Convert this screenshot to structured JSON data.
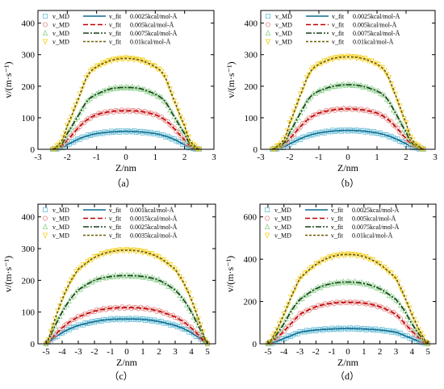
{
  "figure": {
    "legend_markers": [
      "v_MD",
      "v_MD",
      "v_MD",
      "v_MD"
    ],
    "legend_fits": [
      "v_fit",
      "v_fit",
      "v_fit",
      "v_fit"
    ]
  },
  "chart_data": [
    {
      "type": "line",
      "panel_label": "（a）",
      "xlabel": "Z/nm",
      "ylabel": "v/(m·s⁻¹)",
      "xlim": [
        -3,
        3
      ],
      "ylim": [
        0,
        440
      ],
      "xticks": [
        -3,
        -2,
        -1,
        0,
        1,
        2,
        3
      ],
      "yticks": [
        0,
        100,
        200,
        300,
        400
      ],
      "legend_position": "top",
      "series": [
        {
          "name": "0.0025kcal/mol-Å",
          "color": "#0b6a8f",
          "md_color": "#6ec1d9",
          "marker": "square",
          "dash": "none",
          "x": [
            -2.5,
            -2.2,
            -2.0,
            -1.6,
            -1.3,
            -1.0,
            -0.5,
            0,
            0.5,
            1.0,
            1.3,
            1.6,
            2.0,
            2.2,
            2.5
          ],
          "y": [
            0,
            5,
            15,
            33,
            43,
            50,
            55,
            57,
            55,
            50,
            43,
            33,
            15,
            5,
            0
          ]
        },
        {
          "name": "0.005kcal/mol-Å",
          "color": "#c00000",
          "md_color": "#e58a8a",
          "marker": "circle",
          "dash": "6,3",
          "x": [
            -2.5,
            -2.2,
            -2.0,
            -1.6,
            -1.3,
            -1.0,
            -0.5,
            0,
            0.5,
            1.0,
            1.3,
            1.6,
            2.0,
            2.2,
            2.5
          ],
          "y": [
            0,
            10,
            30,
            70,
            95,
            110,
            120,
            122,
            120,
            110,
            95,
            70,
            30,
            10,
            0
          ]
        },
        {
          "name": "0.0075kcal/mol-Å",
          "color": "#1a3d1a",
          "md_color": "#8fd18f",
          "marker": "triangle",
          "dash": "7,2,2,2",
          "x": [
            -2.5,
            -2.2,
            -2.0,
            -1.6,
            -1.3,
            -1.0,
            -0.5,
            0,
            0.5,
            1.0,
            1.3,
            1.6,
            2.0,
            2.2,
            2.5
          ],
          "y": [
            0,
            15,
            50,
            110,
            155,
            175,
            192,
            196,
            192,
            175,
            155,
            110,
            50,
            15,
            0
          ]
        },
        {
          "name": "0.01kcal/mol-Å",
          "color": "#6b5a00",
          "md_color": "#f5d020",
          "marker": "triangle-down",
          "dash": "3,2",
          "x": [
            -2.5,
            -2.2,
            -2.0,
            -1.6,
            -1.3,
            -1.0,
            -0.5,
            0,
            0.5,
            1.0,
            1.3,
            1.6,
            2.0,
            2.2,
            2.5
          ],
          "y": [
            0,
            25,
            75,
            165,
            235,
            262,
            282,
            288,
            282,
            262,
            235,
            165,
            75,
            25,
            0
          ]
        }
      ]
    },
    {
      "type": "line",
      "panel_label": "（b）",
      "xlabel": "Z/nm",
      "ylabel": "v/(m·s⁻¹)",
      "xlim": [
        -3,
        3
      ],
      "ylim": [
        0,
        440
      ],
      "xticks": [
        -3,
        -2,
        -1,
        0,
        1,
        2,
        3
      ],
      "yticks": [
        0,
        100,
        200,
        300,
        400
      ],
      "legend_position": "top",
      "series": [
        {
          "name": "0.0025kcal/mol-Å",
          "color": "#0b6a8f",
          "md_color": "#6ec1d9",
          "marker": "square",
          "dash": "none",
          "x": [
            -2.6,
            -2.2,
            -2.0,
            -1.6,
            -1.3,
            -1.0,
            -0.5,
            0,
            0.5,
            1.0,
            1.3,
            1.6,
            2.0,
            2.2,
            2.6
          ],
          "y": [
            0,
            8,
            18,
            35,
            45,
            52,
            58,
            60,
            58,
            52,
            45,
            35,
            18,
            8,
            0
          ]
        },
        {
          "name": "0.005kcal/mol-Å",
          "color": "#c00000",
          "md_color": "#e58a8a",
          "marker": "circle",
          "dash": "6,3",
          "x": [
            -2.6,
            -2.2,
            -2.0,
            -1.6,
            -1.3,
            -1.0,
            -0.5,
            0,
            0.5,
            1.0,
            1.3,
            1.6,
            2.0,
            2.2,
            2.6
          ],
          "y": [
            0,
            15,
            35,
            75,
            100,
            115,
            125,
            128,
            125,
            115,
            100,
            75,
            35,
            15,
            0
          ]
        },
        {
          "name": "0.0075kcal/mol-Å",
          "color": "#1a3d1a",
          "md_color": "#8fd18f",
          "marker": "triangle",
          "dash": "7,2,2,2",
          "x": [
            -2.6,
            -2.2,
            -2.0,
            -1.6,
            -1.3,
            -1.0,
            -0.5,
            0,
            0.5,
            1.0,
            1.3,
            1.6,
            2.0,
            2.2,
            2.6
          ],
          "y": [
            0,
            20,
            55,
            120,
            165,
            185,
            200,
            205,
            200,
            185,
            165,
            120,
            55,
            20,
            0
          ]
        },
        {
          "name": "0.01kcal/mol-Å",
          "color": "#6b5a00",
          "md_color": "#f5d020",
          "marker": "triangle-down",
          "dash": "3,2",
          "x": [
            -2.6,
            -2.2,
            -2.0,
            -1.6,
            -1.3,
            -1.0,
            -0.5,
            0,
            0.5,
            1.0,
            1.3,
            1.6,
            2.0,
            2.2,
            2.6
          ],
          "y": [
            0,
            30,
            85,
            180,
            245,
            270,
            288,
            293,
            288,
            270,
            245,
            180,
            85,
            30,
            0
          ]
        }
      ]
    },
    {
      "type": "line",
      "panel_label": "（c）",
      "xlabel": "Z/nm",
      "ylabel": "v/(m·s⁻¹)",
      "xlim": [
        -5.5,
        5.5
      ],
      "ylim": [
        0,
        440
      ],
      "xticks": [
        -5,
        -4,
        -3,
        -2,
        -1,
        0,
        1,
        2,
        3,
        4,
        5
      ],
      "yticks": [
        0,
        100,
        200,
        300,
        400
      ],
      "legend_position": "top",
      "series": [
        {
          "name": "0.001kcal/mol-Å",
          "color": "#0b6a8f",
          "md_color": "#6ec1d9",
          "marker": "square",
          "dash": "none",
          "x": [
            -5,
            -4.5,
            -4,
            -3.5,
            -3,
            -2,
            -1,
            0,
            1,
            2,
            3,
            3.5,
            4,
            4.5,
            5
          ],
          "y": [
            0,
            18,
            35,
            48,
            58,
            70,
            77,
            78,
            77,
            70,
            58,
            48,
            35,
            18,
            0
          ]
        },
        {
          "name": "0.0015kcal/mol-Å",
          "color": "#c00000",
          "md_color": "#e58a8a",
          "marker": "circle",
          "dash": "6,3",
          "x": [
            -5,
            -4.5,
            -4,
            -3.5,
            -3,
            -2,
            -1,
            0,
            1,
            2,
            3,
            3.5,
            4,
            4.5,
            5
          ],
          "y": [
            0,
            25,
            50,
            70,
            85,
            103,
            112,
            114,
            112,
            103,
            85,
            70,
            50,
            25,
            0
          ]
        },
        {
          "name": "0.0025kcal/mol-Å",
          "color": "#1a3d1a",
          "md_color": "#8fd18f",
          "marker": "triangle",
          "dash": "7,2,2,2",
          "x": [
            -5,
            -4.5,
            -4,
            -3.5,
            -3,
            -2,
            -1,
            0,
            1,
            2,
            3,
            3.5,
            4,
            4.5,
            5
          ],
          "y": [
            0,
            50,
            100,
            140,
            170,
            200,
            212,
            215,
            212,
            200,
            170,
            140,
            100,
            50,
            0
          ]
        },
        {
          "name": "0.0035kcal/mol-Å",
          "color": "#6b5a00",
          "md_color": "#f5d020",
          "marker": "triangle-down",
          "dash": "3,2",
          "x": [
            -5,
            -4.5,
            -4,
            -3.5,
            -3,
            -2,
            -1,
            0,
            1,
            2,
            3,
            3.5,
            4,
            4.5,
            5
          ],
          "y": [
            0,
            70,
            140,
            195,
            235,
            272,
            290,
            295,
            290,
            272,
            235,
            195,
            140,
            70,
            0
          ]
        }
      ]
    },
    {
      "type": "line",
      "panel_label": "（d）",
      "xlabel": "Z/nm",
      "ylabel": "v/(m·s⁻¹)",
      "xlim": [
        -5.5,
        5.5
      ],
      "ylim": [
        0,
        660
      ],
      "xticks": [
        -5,
        -4,
        -3,
        -2,
        -1,
        0,
        1,
        2,
        3,
        4,
        5
      ],
      "yticks": [
        0,
        200,
        400,
        600
      ],
      "legend_position": "top",
      "series": [
        {
          "name": "0.0025kcal/mol-Å",
          "color": "#0b6a8f",
          "md_color": "#6ec1d9",
          "marker": "square",
          "dash": "none",
          "x": [
            -5,
            -4.5,
            -4,
            -3.5,
            -3,
            -2,
            -1,
            0,
            1,
            2,
            3,
            3.5,
            4,
            4.5,
            5
          ],
          "y": [
            0,
            10,
            25,
            40,
            55,
            65,
            70,
            72,
            70,
            65,
            55,
            40,
            25,
            10,
            0
          ]
        },
        {
          "name": "0.005kcal/mol-Å",
          "color": "#c00000",
          "md_color": "#e58a8a",
          "marker": "circle",
          "dash": "6,3",
          "x": [
            -5,
            -4.5,
            -4,
            -3.5,
            -3,
            -2,
            -1,
            0,
            1,
            2,
            3,
            3.5,
            4,
            4.5,
            5
          ],
          "y": [
            0,
            25,
            60,
            100,
            140,
            175,
            192,
            196,
            192,
            175,
            140,
            100,
            60,
            25,
            0
          ]
        },
        {
          "name": "0.0075kcal/mol-Å",
          "color": "#1a3d1a",
          "md_color": "#8fd18f",
          "marker": "triangle",
          "dash": "7,2,2,2",
          "x": [
            -5,
            -4.5,
            -4,
            -3.5,
            -3,
            -2,
            -1,
            0,
            1,
            2,
            3,
            3.5,
            4,
            4.5,
            5
          ],
          "y": [
            0,
            40,
            95,
            160,
            210,
            260,
            285,
            292,
            285,
            260,
            210,
            160,
            95,
            40,
            0
          ]
        },
        {
          "name": "0.01kcal/mol-Å",
          "color": "#6b5a00",
          "md_color": "#f5d020",
          "marker": "triangle-down",
          "dash": "3,2",
          "x": [
            -5,
            -4.5,
            -4,
            -3.5,
            -3,
            -2,
            -1,
            0,
            1,
            2,
            3,
            3.5,
            4,
            4.5,
            5
          ],
          "y": [
            0,
            60,
            140,
            230,
            310,
            375,
            412,
            422,
            412,
            375,
            310,
            230,
            140,
            60,
            0
          ]
        }
      ]
    }
  ]
}
